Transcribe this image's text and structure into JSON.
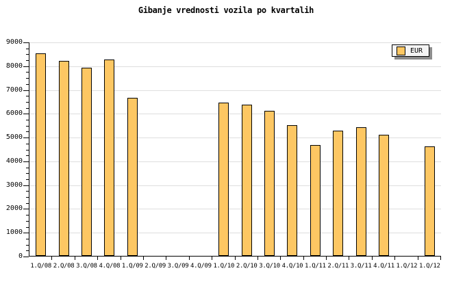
{
  "colors": {
    "background": "#FFFFFF",
    "bar_fill": "#FDC763",
    "bar_border": "#000000",
    "gridline": "#DEDEDE",
    "axis": "#000000",
    "legend_background": "#F4F4F4",
    "legend_shadow": "#8C8C8C",
    "text": "#000000"
  },
  "chart_data": {
    "type": "bar",
    "title": "Gibanje vrednosti vozila po kvartalih",
    "legend_label": "EUR",
    "legend_position": "top-right",
    "categories": [
      "1.Q/08",
      "2.Q/08",
      "3.Q/08",
      "4.Q/08",
      "1.Q/09",
      "2.Q/09",
      "3.Q/09",
      "4.Q/09",
      "1.Q/10",
      "2.Q/10",
      "3.Q/10",
      "4.Q/10",
      "1.Q/11",
      "2.Q/11",
      "3.Q/11",
      "4.Q/11",
      "1.Q/12",
      "1.Q/12"
    ],
    "values": [
      8500,
      8200,
      7900,
      8250,
      6650,
      null,
      null,
      null,
      6450,
      6350,
      6100,
      5500,
      4650,
      5250,
      5400,
      5100,
      null,
      4600
    ],
    "xlabel": "",
    "ylabel": "",
    "ylim": [
      0,
      9000
    ],
    "ytick_interval": 1000,
    "yminor_tick_interval": 250,
    "ytick_labels": [
      "0",
      "1000",
      "2000",
      "3000",
      "4000",
      "5000",
      "6000",
      "7000",
      "8000",
      "9000"
    ],
    "grid": "horizontal-major",
    "missing_quarters_note": "no bars drawn for 2.Q/09, 3.Q/09, 4.Q/09 and first 1.Q/12 slot"
  }
}
